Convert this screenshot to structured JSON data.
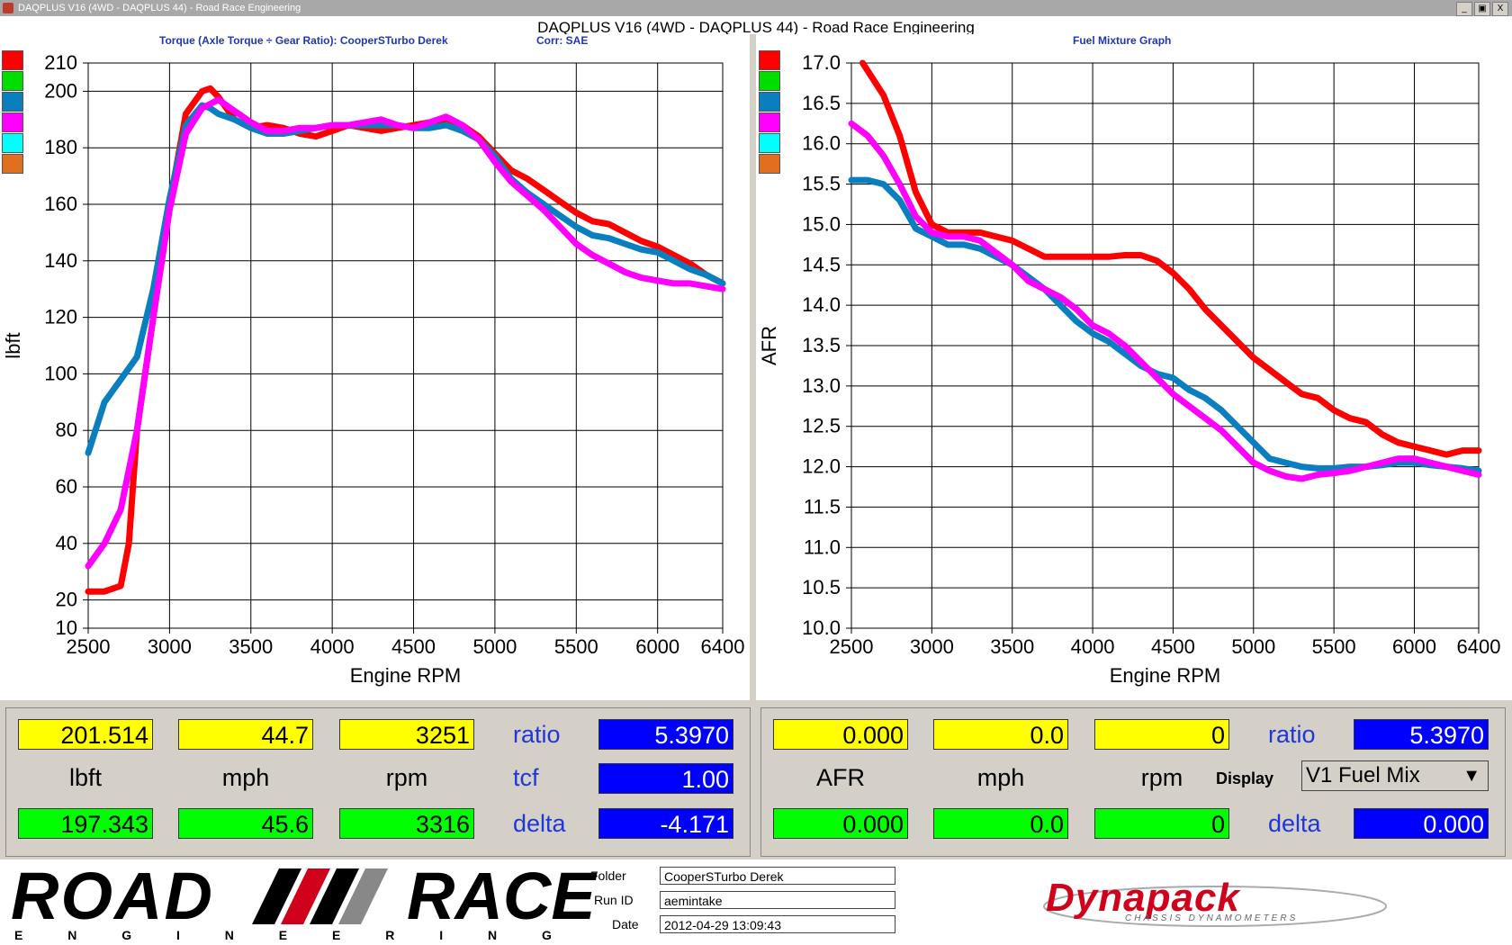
{
  "window": {
    "title": "DAQPLUS V16 (4WD - DAQPLUS 44) - Road Race Engineering",
    "main_title": "DAQPLUS V16 (4WD - DAQPLUS 44) - Road Race Engineering",
    "buttons": [
      "_",
      "▣",
      "X"
    ]
  },
  "torque_chart": {
    "subtitle": "Torque (Axle Torque ÷ Gear Ratio): CooperSTurbo Derek",
    "corr": "Corr: SAE"
  },
  "fuel_chart": {
    "subtitle": "Fuel Mixture Graph"
  },
  "legend_colors": [
    "#ff0000",
    "#00dd00",
    "#0a7fc0",
    "#ff00ff",
    "#00ffff",
    "#e07020"
  ],
  "chart_data": [
    {
      "type": "line",
      "title": "Torque (Axle Torque ÷ Gear Ratio): CooperSTurbo Derek",
      "xlabel": "Engine RPM",
      "ylabel": "lbft",
      "xlim": [
        2500,
        6400
      ],
      "ylim": [
        10,
        210
      ],
      "xticks": [
        2500,
        3000,
        3500,
        4000,
        4500,
        5000,
        5500,
        6000,
        6400
      ],
      "yticks": [
        10,
        20,
        40,
        60,
        80,
        100,
        120,
        140,
        160,
        180,
        200,
        210
      ],
      "grid": true,
      "series": [
        {
          "color": "#ff0000",
          "x": [
            2500,
            2600,
            2700,
            2750,
            2800,
            2900,
            3000,
            3100,
            3200,
            3250,
            3300,
            3400,
            3500,
            3600,
            3700,
            3800,
            3900,
            4000,
            4100,
            4200,
            4300,
            4400,
            4500,
            4600,
            4700,
            4800,
            4900,
            5000,
            5100,
            5200,
            5300,
            5400,
            5500,
            5600,
            5700,
            5800,
            5900,
            6000,
            6100,
            6200,
            6300,
            6400
          ],
          "y": [
            23,
            23,
            25,
            40,
            80,
            120,
            160,
            192,
            200,
            201,
            198,
            190,
            187,
            188,
            187,
            185,
            184,
            186,
            188,
            187,
            186,
            187,
            188,
            189,
            190,
            188,
            184,
            178,
            172,
            169,
            165,
            161,
            157,
            154,
            153,
            150,
            147,
            145,
            142,
            139,
            135,
            132
          ]
        },
        {
          "color": "#0a7fc0",
          "x": [
            2500,
            2600,
            2700,
            2800,
            2900,
            3000,
            3100,
            3200,
            3250,
            3300,
            3400,
            3500,
            3600,
            3700,
            3800,
            3900,
            4000,
            4100,
            4200,
            4300,
            4400,
            4500,
            4600,
            4700,
            4800,
            4900,
            5000,
            5100,
            5200,
            5300,
            5400,
            5500,
            5600,
            5700,
            5800,
            5900,
            6000,
            6100,
            6200,
            6300,
            6400
          ],
          "y": [
            72,
            90,
            98,
            106,
            130,
            162,
            188,
            195,
            194,
            192,
            190,
            187,
            185,
            185,
            186,
            187,
            188,
            188,
            188,
            188,
            188,
            187,
            187,
            188,
            186,
            183,
            177,
            169,
            164,
            160,
            156,
            152,
            149,
            148,
            146,
            144,
            143,
            140,
            137,
            135,
            132
          ]
        },
        {
          "color": "#ff00ff",
          "x": [
            2500,
            2600,
            2700,
            2800,
            2900,
            3000,
            3100,
            3200,
            3300,
            3400,
            3500,
            3600,
            3700,
            3800,
            3900,
            4000,
            4100,
            4200,
            4300,
            4400,
            4500,
            4600,
            4700,
            4800,
            4900,
            5000,
            5100,
            5200,
            5300,
            5400,
            5500,
            5600,
            5700,
            5800,
            5900,
            6000,
            6100,
            6200,
            6300,
            6400
          ],
          "y": [
            32,
            40,
            52,
            80,
            120,
            158,
            185,
            194,
            197,
            193,
            189,
            186,
            186,
            187,
            187,
            188,
            188,
            189,
            190,
            188,
            187,
            189,
            191,
            188,
            183,
            175,
            168,
            163,
            158,
            152,
            146,
            142,
            139,
            136,
            134,
            133,
            132,
            132,
            131,
            130
          ]
        }
      ]
    },
    {
      "type": "line",
      "title": "Fuel Mixture Graph",
      "xlabel": "Engine RPM",
      "ylabel": "AFR",
      "xlim": [
        2500,
        6400
      ],
      "ylim": [
        10.0,
        17.0
      ],
      "xticks": [
        2500,
        3000,
        3500,
        4000,
        4500,
        5000,
        5500,
        6000,
        6400
      ],
      "yticks": [
        10.0,
        10.5,
        11.0,
        11.5,
        12.0,
        12.5,
        13.0,
        13.5,
        14.0,
        14.5,
        15.0,
        15.5,
        16.0,
        16.5,
        17.0
      ],
      "grid": true,
      "series": [
        {
          "color": "#ff0000",
          "x": [
            2570,
            2700,
            2800,
            2900,
            3000,
            3100,
            3200,
            3300,
            3400,
            3500,
            3600,
            3700,
            3800,
            3900,
            4000,
            4100,
            4200,
            4300,
            4400,
            4500,
            4600,
            4700,
            4800,
            4900,
            5000,
            5100,
            5200,
            5300,
            5400,
            5500,
            5600,
            5700,
            5800,
            5900,
            6000,
            6100,
            6200,
            6300,
            6400
          ],
          "y": [
            17.0,
            16.6,
            16.1,
            15.4,
            15.0,
            14.9,
            14.9,
            14.9,
            14.85,
            14.8,
            14.7,
            14.6,
            14.6,
            14.6,
            14.6,
            14.6,
            14.62,
            14.62,
            14.55,
            14.4,
            14.2,
            13.95,
            13.75,
            13.55,
            13.35,
            13.2,
            13.05,
            12.9,
            12.85,
            12.7,
            12.6,
            12.55,
            12.4,
            12.3,
            12.25,
            12.2,
            12.15,
            12.2,
            12.2
          ]
        },
        {
          "color": "#0a7fc0",
          "x": [
            2500,
            2600,
            2700,
            2800,
            2900,
            3000,
            3100,
            3200,
            3300,
            3400,
            3500,
            3600,
            3700,
            3800,
            3900,
            4000,
            4100,
            4200,
            4300,
            4400,
            4500,
            4600,
            4700,
            4800,
            4900,
            5000,
            5100,
            5200,
            5300,
            5400,
            5500,
            5600,
            5700,
            5800,
            5900,
            6000,
            6100,
            6200,
            6300,
            6400
          ],
          "y": [
            15.55,
            15.55,
            15.5,
            15.3,
            14.95,
            14.85,
            14.75,
            14.75,
            14.7,
            14.6,
            14.5,
            14.35,
            14.2,
            14.0,
            13.8,
            13.65,
            13.55,
            13.4,
            13.25,
            13.15,
            13.1,
            12.95,
            12.85,
            12.7,
            12.5,
            12.3,
            12.1,
            12.05,
            12.0,
            11.98,
            11.98,
            12.0,
            12.0,
            12.02,
            12.05,
            12.05,
            12.02,
            12.0,
            11.98,
            11.95
          ]
        },
        {
          "color": "#ff00ff",
          "x": [
            2500,
            2600,
            2700,
            2800,
            2900,
            3000,
            3100,
            3200,
            3300,
            3400,
            3500,
            3600,
            3700,
            3800,
            3900,
            4000,
            4100,
            4200,
            4300,
            4400,
            4500,
            4600,
            4700,
            4800,
            4900,
            5000,
            5100,
            5200,
            5300,
            5400,
            5500,
            5600,
            5700,
            5800,
            5900,
            6000,
            6100,
            6200,
            6300,
            6400
          ],
          "y": [
            16.25,
            16.1,
            15.85,
            15.5,
            15.1,
            14.9,
            14.85,
            14.85,
            14.8,
            14.65,
            14.5,
            14.3,
            14.2,
            14.1,
            13.95,
            13.75,
            13.65,
            13.5,
            13.3,
            13.1,
            12.9,
            12.75,
            12.6,
            12.45,
            12.25,
            12.05,
            11.95,
            11.88,
            11.85,
            11.9,
            11.92,
            11.95,
            12.0,
            12.05,
            12.1,
            12.1,
            12.05,
            12.0,
            11.95,
            11.9
          ]
        }
      ]
    }
  ],
  "left_readout": {
    "row1": [
      "201.514",
      "44.7",
      "3251"
    ],
    "units": [
      "lbft",
      "mph",
      "rpm"
    ],
    "row2": [
      "197.343",
      "45.6",
      "3316"
    ],
    "ratio_label": "ratio",
    "ratio_value": "5.3970",
    "tcf_label": "tcf",
    "tcf_value": "1.00",
    "delta_label": "delta",
    "delta_value": "-4.171"
  },
  "right_readout": {
    "row1": [
      "0.000",
      "0.0",
      "0"
    ],
    "units": [
      "AFR",
      "mph",
      "rpm"
    ],
    "row2": [
      "0.000",
      "0.0",
      "0"
    ],
    "ratio_label": "ratio",
    "ratio_value": "5.3970",
    "display_label": "Display",
    "display_value": "V1 Fuel Mix",
    "delta_label": "delta",
    "delta_value": "0.000"
  },
  "footer": {
    "logo_top_left": "ROAD",
    "logo_top_right": "RACE",
    "logo_sub": "E N G I N E E R I N G",
    "folder_label": "Folder",
    "folder_value": "CooperSTurbo Derek",
    "runid_label": "Run ID",
    "runid_value": "aemintake",
    "date_label": "Date",
    "date_value": "2012-04-29 13:09:43",
    "brand": "Dynapack",
    "brand_sub": "CHASSIS DYNAMOMETERS"
  }
}
